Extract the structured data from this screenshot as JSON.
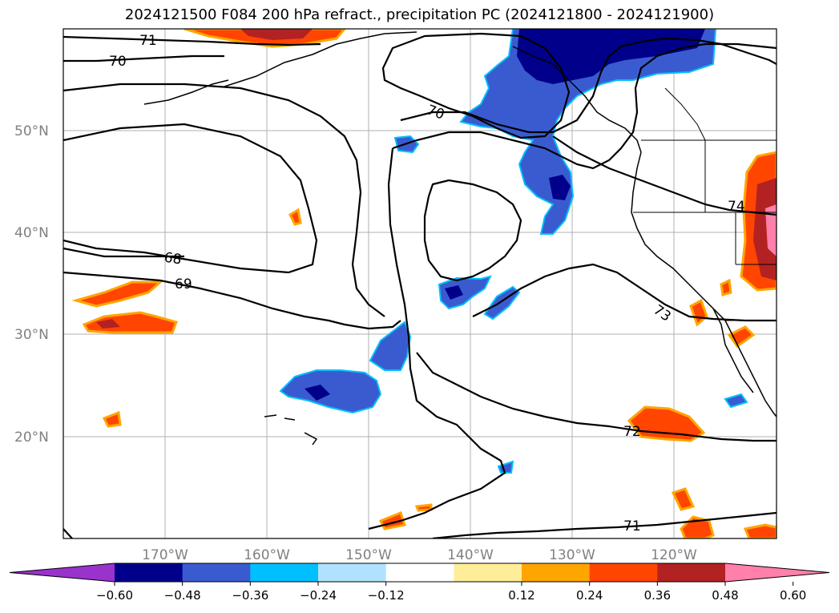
{
  "title": "2024121500 F084 200 hPa refract., precipitation PC (2024121800 - 2024121900)",
  "map": {
    "lat_labels": [
      "50°N",
      "40°N",
      "30°N",
      "20°N"
    ],
    "lon_labels": [
      "170°W",
      "160°W",
      "150°W",
      "140°W",
      "130°W",
      "120°W"
    ],
    "contour_labels": [
      "71",
      "70",
      "70",
      "68",
      "69",
      "74",
      "73",
      "72",
      "71"
    ]
  },
  "colorbar": {
    "colors": [
      "#9933cc",
      "#00008b",
      "#3a5bd0",
      "#00bfff",
      "#b0e2ff",
      "#ffffff",
      "#ffee99",
      "#ffa500",
      "#ff4500",
      "#b22222",
      "#ff80aa"
    ],
    "ticks": [
      "−0.60",
      "−0.48",
      "−0.36",
      "−0.24",
      "−0.12",
      "0.12",
      "0.24",
      "0.36",
      "0.48",
      "0.60"
    ]
  }
}
